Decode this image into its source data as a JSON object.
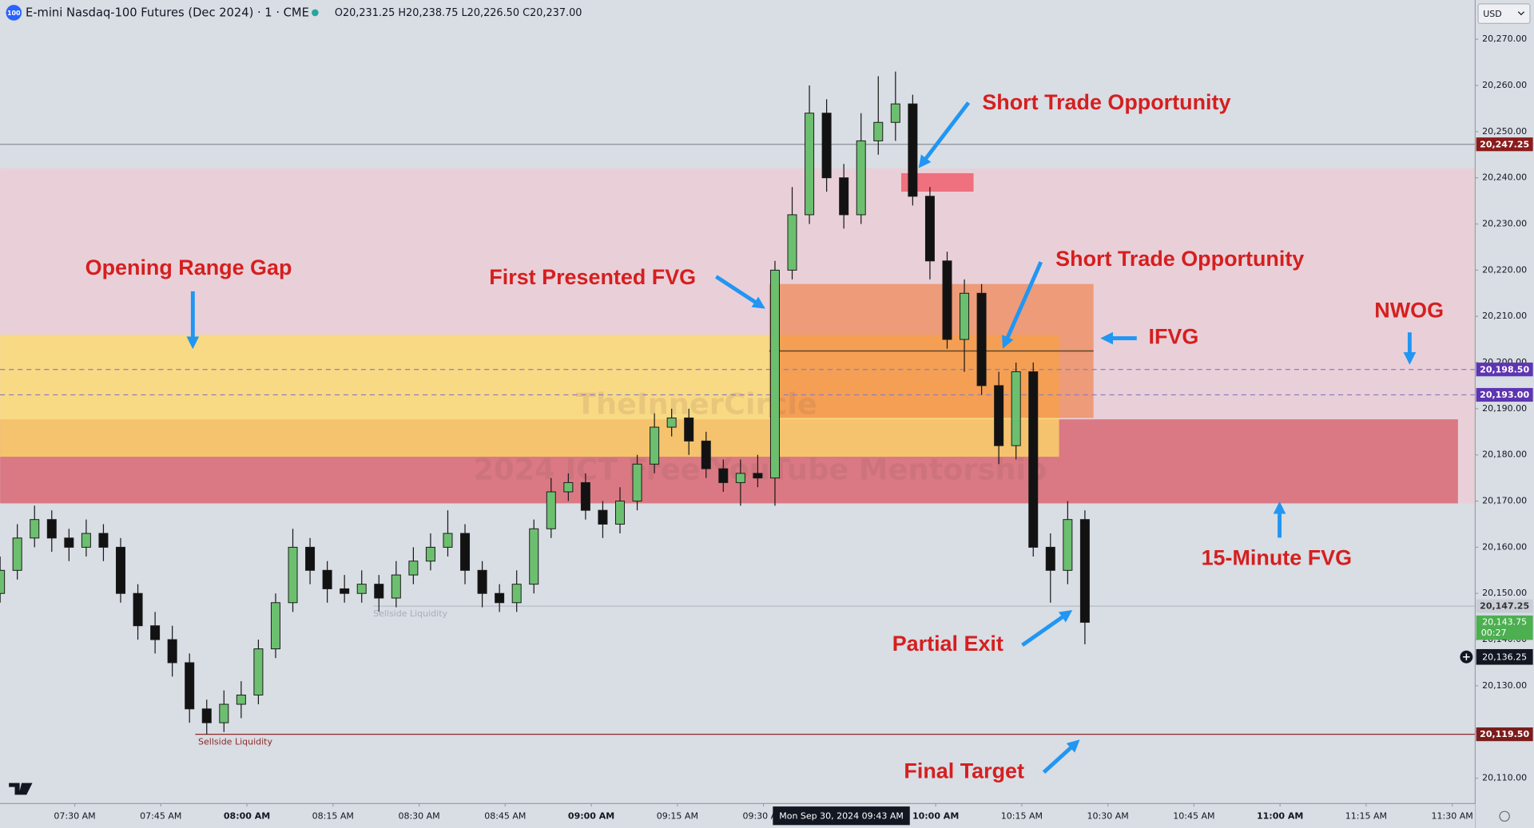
{
  "header": {
    "title": "E-mini Nasdaq-100 Futures (Dec 2024) · 1 · CME",
    "symbol_badge": "100",
    "ohlc": "O20,231.25 H20,238.75 L20,226.50 C20,237.00",
    "currency": "USD"
  },
  "chart_data": {
    "type": "candlestick",
    "xlim": [
      437,
      694
    ],
    "ylim": [
      20104.5,
      20278.5
    ],
    "grid": false,
    "xticks": [
      {
        "value": 450,
        "label": "07:30 AM"
      },
      {
        "value": 465,
        "label": "07:45 AM"
      },
      {
        "value": 480,
        "label": "08:00 AM"
      },
      {
        "value": 495,
        "label": "08:15 AM"
      },
      {
        "value": 510,
        "label": "08:30 AM"
      },
      {
        "value": 525,
        "label": "08:45 AM"
      },
      {
        "value": 540,
        "label": "09:00 AM"
      },
      {
        "value": 555,
        "label": "09:15 AM"
      },
      {
        "value": 570,
        "label": "09:30 AM"
      },
      {
        "value": 600,
        "label": "10:00 AM"
      },
      {
        "value": 615,
        "label": "10:15 AM"
      },
      {
        "value": 630,
        "label": "10:30 AM"
      },
      {
        "value": 645,
        "label": "10:45 AM"
      },
      {
        "value": 660,
        "label": "11:00 AM"
      },
      {
        "value": 675,
        "label": "11:15 AM"
      },
      {
        "value": 690,
        "label": "11:30 AM"
      }
    ],
    "yticks": [
      {
        "value": 20110,
        "label": "20,110.00"
      },
      {
        "value": 20120,
        "label": "20,120.00"
      },
      {
        "value": 20130,
        "label": "20,130.00"
      },
      {
        "value": 20140,
        "label": "20,140.00"
      },
      {
        "value": 20150,
        "label": "20,150.00"
      },
      {
        "value": 20160,
        "label": "20,160.00"
      },
      {
        "value": 20170,
        "label": "20,170.00"
      },
      {
        "value": 20180,
        "label": "20,180.00"
      },
      {
        "value": 20190,
        "label": "20,190.00"
      },
      {
        "value": 20200,
        "label": "20,200.00"
      },
      {
        "value": 20210,
        "label": "20,210.00"
      },
      {
        "value": 20220,
        "label": "20,220.00"
      },
      {
        "value": 20230,
        "label": "20,230.00"
      },
      {
        "value": 20240,
        "label": "20,240.00"
      },
      {
        "value": 20250,
        "label": "20,250.00"
      },
      {
        "value": 20260,
        "label": "20,260.00"
      },
      {
        "value": 20270,
        "label": "20,270.00"
      }
    ],
    "series": [
      {
        "up_color": "#6cbf6f",
        "down_color": "#121212",
        "x": [
          437,
          440,
          443,
          446,
          449,
          452,
          455,
          458,
          461,
          464,
          467,
          470,
          473,
          476,
          479,
          482,
          485,
          488,
          491,
          494,
          497,
          500,
          503,
          506,
          509,
          512,
          515,
          518,
          521,
          524,
          527,
          530,
          533,
          536,
          539,
          542,
          545,
          548,
          551,
          554,
          557,
          560,
          563,
          566,
          569,
          572,
          575,
          578,
          581,
          584,
          587,
          590,
          593,
          596,
          599,
          602,
          605,
          608,
          611,
          614,
          617,
          620,
          623,
          626
        ],
        "open": [
          20150,
          20155,
          20162,
          20166,
          20162,
          20160,
          20163,
          20160,
          20150,
          20143,
          20140,
          20135,
          20125,
          20122,
          20126,
          20128,
          20138,
          20148,
          20160,
          20155,
          20151,
          20150,
          20152,
          20149,
          20154,
          20157,
          20160,
          20163,
          20155,
          20150,
          20148,
          20152,
          20164,
          20172,
          20174,
          20168,
          20165,
          20170,
          20178,
          20186,
          20188,
          20183,
          20177,
          20174,
          20176,
          20175,
          20220,
          20232,
          20254,
          20240,
          20232,
          20248,
          20252,
          20256,
          20236,
          20222,
          20205,
          20215,
          20195,
          20182,
          20198,
          20160,
          20155,
          20166
        ],
        "high": [
          20158,
          20165,
          20169,
          20168,
          20164,
          20166,
          20165,
          20162,
          20152,
          20146,
          20143,
          20137,
          20127,
          20129,
          20131,
          20140,
          20150,
          20164,
          20162,
          20157,
          20154,
          20155,
          20154,
          20157,
          20160,
          20163,
          20168,
          20165,
          20157,
          20152,
          20155,
          20166,
          20175,
          20176,
          20176,
          20170,
          20173,
          20180,
          20189,
          20190,
          20190,
          20185,
          20179,
          20179,
          20180,
          20222,
          20238,
          20260,
          20257,
          20243,
          20254,
          20262,
          20263,
          20258,
          20238,
          20224,
          20218,
          20217,
          20198,
          20200,
          20200,
          20163,
          20170,
          20168
        ],
        "low": [
          20148,
          20153,
          20160,
          20159,
          20157,
          20158,
          20157,
          20148,
          20140,
          20137,
          20132,
          20122,
          20119.5,
          20120,
          20123,
          20126,
          20136,
          20146,
          20152,
          20148,
          20148,
          20148,
          20146,
          20147,
          20152,
          20155,
          20158,
          20152,
          20147,
          20146,
          20146,
          20150,
          20162,
          20170,
          20166,
          20162,
          20163,
          20168,
          20176,
          20184,
          20180,
          20175,
          20172,
          20169,
          20173,
          20169,
          20218,
          20230,
          20237,
          20229,
          20230,
          20245,
          20248,
          20234,
          20218,
          20203,
          20198,
          20193,
          20178,
          20179,
          20158,
          20148,
          20152,
          20139
        ],
        "close": [
          20155,
          20162,
          20166,
          20162,
          20160,
          20163,
          20160,
          20150,
          20143,
          20140,
          20135,
          20125,
          20122,
          20126,
          20128,
          20138,
          20148,
          20160,
          20155,
          20151,
          20150,
          20152,
          20149,
          20154,
          20157,
          20160,
          20163,
          20155,
          20150,
          20148,
          20152,
          20164,
          20172,
          20174,
          20168,
          20165,
          20170,
          20178,
          20186,
          20188,
          20183,
          20177,
          20174,
          20176,
          20175,
          20220,
          20232,
          20254,
          20240,
          20232,
          20248,
          20252,
          20256,
          20236,
          20222,
          20205,
          20215,
          20195,
          20182,
          20198,
          20160,
          20155,
          20166,
          20143.75
        ]
      }
    ],
    "zones": [
      {
        "x": [
          437,
          694
        ],
        "y": [
          20169.5,
          20242
        ],
        "color": "rgba(246,196,206,0.55)"
      },
      {
        "x": [
          437,
          691
        ],
        "y": [
          20169.5,
          20187.7
        ],
        "color": "rgba(212,88,100,0.72)"
      },
      {
        "x": [
          437,
          621.5
        ],
        "y": [
          20179.6,
          20206
        ],
        "color": "rgba(255,222,100,0.72)"
      },
      {
        "x": [
          571,
          627.5
        ],
        "y": [
          20188,
          20217
        ],
        "color": "rgba(240,118,50,0.58)"
      },
      {
        "x": [
          594,
          606.6
        ],
        "y": [
          20237,
          20241
        ],
        "color": "rgba(240,88,104,0.8)"
      }
    ],
    "midline": {
      "x": [
        571,
        627.5
      ],
      "value": 20202.5,
      "color": "#6b4a2a"
    },
    "price_lines": [
      {
        "value": 20247.25,
        "label": "20,247.25",
        "from": 437,
        "color": "#8a8f99",
        "tag_color": "#8b1c1c",
        "text_color": "#ffffff",
        "dash": false
      },
      {
        "value": 20198.5,
        "label": "20,198.50",
        "from": 437,
        "color": "#8e7cc3",
        "tag_color": "#5e35b1",
        "text_color": "#ffffff",
        "dash": true
      },
      {
        "value": 20193,
        "label": "20,193.00",
        "from": 437,
        "color": "#8e7cc3",
        "tag_color": "#5e35b1",
        "text_color": "#ffffff",
        "dash": true
      },
      {
        "value": 20147.25,
        "label": "20,147.25",
        "from": 502,
        "color": "#b7bcc6",
        "tag_color": "#c9cdd5",
        "text_color": "#333333",
        "dash": false
      },
      {
        "value": 20119.5,
        "label": "20,119.50",
        "from": 471,
        "color": "#8b2a2a",
        "tag_color": "#7b1c1c",
        "text_color": "#ffffff",
        "dash": false
      }
    ],
    "current_price": {
      "value": 20143.75,
      "label": "20,143.75",
      "countdown": "00:27",
      "color": "#4caf50"
    },
    "crosshair": {
      "time_label": "Mon Sep 30, 2024  09:43 AM",
      "price": 20136.25,
      "price_label": "20,136.25"
    },
    "liquidity_labels": [
      "Sellside Liquidity",
      "Sellside Liquidity"
    ],
    "watermark": [
      "TheInnerCircle",
      "2024 ICT Free YouTube Mentorship"
    ],
    "annotation_color": "#d51f1f",
    "arrow_color": "#2196f3",
    "annotations": [
      "Short Trade Opportunity",
      "Opening Range Gap",
      "First Presented FVG",
      "Short Trade Opportunity",
      "IFVG",
      "NWOG",
      "15-Minute FVG",
      "Partial Exit",
      "Final Target"
    ]
  }
}
